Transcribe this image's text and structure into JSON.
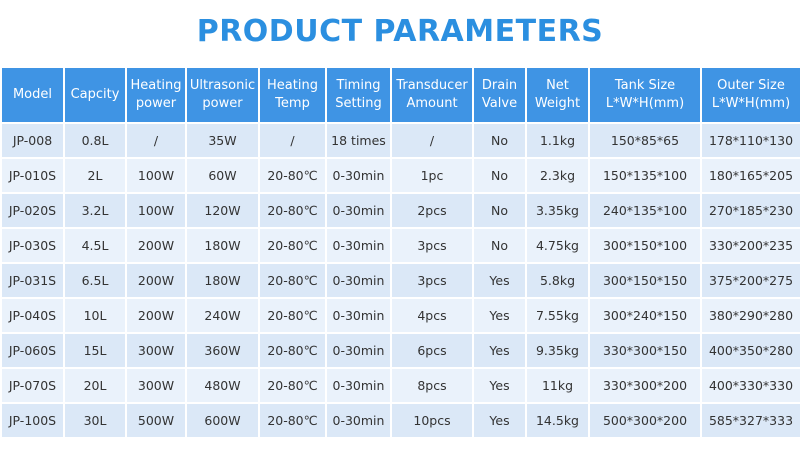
{
  "title": "PRODUCT PARAMETERS",
  "table": {
    "header": [
      [
        "Model"
      ],
      [
        "Capcity"
      ],
      [
        "Heating",
        "power"
      ],
      [
        "Ultrasonic",
        "power"
      ],
      [
        "Heating",
        "Temp"
      ],
      [
        "Timing",
        "Setting"
      ],
      [
        "Transducer",
        "Amount"
      ],
      [
        "Drain",
        "Valve"
      ],
      [
        "Net",
        "Weight"
      ],
      [
        "Tank Size",
        "L*W*H(mm)"
      ],
      [
        "Outer Size",
        "L*W*H(mm)"
      ]
    ],
    "rows": [
      [
        "JP-008",
        "0.8L",
        "/",
        "35W",
        "/",
        "18 times",
        "/",
        "No",
        "1.1kg",
        "150*85*65",
        "178*110*130"
      ],
      [
        "JP-010S",
        "2L",
        "100W",
        "60W",
        "20-80℃",
        "0-30min",
        "1pc",
        "No",
        "2.3kg",
        "150*135*100",
        "180*165*205"
      ],
      [
        "JP-020S",
        "3.2L",
        "100W",
        "120W",
        "20-80℃",
        "0-30min",
        "2pcs",
        "No",
        "3.35kg",
        "240*135*100",
        "270*185*230"
      ],
      [
        "JP-030S",
        "4.5L",
        "200W",
        "180W",
        "20-80℃",
        "0-30min",
        "3pcs",
        "No",
        "4.75kg",
        "300*150*100",
        "330*200*235"
      ],
      [
        "JP-031S",
        "6.5L",
        "200W",
        "180W",
        "20-80℃",
        "0-30min",
        "3pcs",
        "Yes",
        "5.8kg",
        "300*150*150",
        "375*200*275"
      ],
      [
        "JP-040S",
        "10L",
        "200W",
        "240W",
        "20-80℃",
        "0-30min",
        "4pcs",
        "Yes",
        "7.55kg",
        "300*240*150",
        "380*290*280"
      ],
      [
        "JP-060S",
        "15L",
        "300W",
        "360W",
        "20-80℃",
        "0-30min",
        "6pcs",
        "Yes",
        "9.35kg",
        "330*300*150",
        "400*350*280"
      ],
      [
        "JP-070S",
        "20L",
        "300W",
        "480W",
        "20-80℃",
        "0-30min",
        "8pcs",
        "Yes",
        "11kg",
        "330*300*200",
        "400*330*330"
      ],
      [
        "JP-100S",
        "30L",
        "500W",
        "600W",
        "20-80℃",
        "0-30min",
        "10pcs",
        "Yes",
        "14.5kg",
        "500*300*200",
        "585*327*333"
      ]
    ]
  }
}
